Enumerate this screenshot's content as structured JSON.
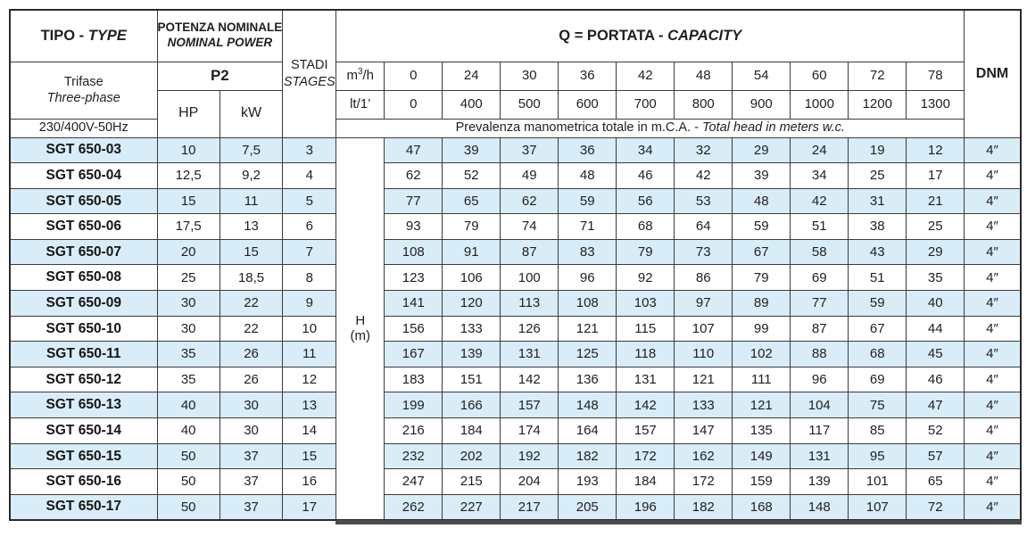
{
  "header": {
    "tipo_label": "TIPO -",
    "tipo_type_label": "TYPE",
    "potenza_line1": "POTENZA NOMINALE",
    "potenza_line2": "NOMINAL POWER",
    "p2_label": "P2",
    "hp_label": "HP",
    "kw_label": "kW",
    "stadi_label": "STADI",
    "stages_label": "STAGES",
    "q_label": "Q = PORTATA -",
    "q_capacity_label": "CAPACITY",
    "dnm_label": "DNM",
    "trifase_label": "Trifase",
    "threephase_label": "Three-phase",
    "voltage_label": "230/400V-50Hz",
    "flow_unit_m3h": "m³/h",
    "flow_unit_lt": "lt/1’",
    "prevalenza_label": "Prevalenza manometrica totale in m.C.A. -",
    "prevalenza_en_label": "Total head in meters w.c.",
    "h_label": "H",
    "h_unit": "(m)",
    "flow_m3h": [
      "0",
      "24",
      "30",
      "36",
      "42",
      "48",
      "54",
      "60",
      "72",
      "78"
    ],
    "flow_lt": [
      "0",
      "400",
      "500",
      "600",
      "700",
      "800",
      "900",
      "1000",
      "1200",
      "1300"
    ]
  },
  "rows": [
    {
      "type": "SGT 650-03",
      "hp": "10",
      "kw": "7,5",
      "stages": "3",
      "head": [
        "47",
        "39",
        "37",
        "36",
        "34",
        "32",
        "29",
        "24",
        "19",
        "12"
      ],
      "dnm": "4″"
    },
    {
      "type": "SGT 650-04",
      "hp": "12,5",
      "kw": "9,2",
      "stages": "4",
      "head": [
        "62",
        "52",
        "49",
        "48",
        "46",
        "42",
        "39",
        "34",
        "25",
        "17"
      ],
      "dnm": "4″"
    },
    {
      "type": "SGT 650-05",
      "hp": "15",
      "kw": "11",
      "stages": "5",
      "head": [
        "77",
        "65",
        "62",
        "59",
        "56",
        "53",
        "48",
        "42",
        "31",
        "21"
      ],
      "dnm": "4″"
    },
    {
      "type": "SGT 650-06",
      "hp": "17,5",
      "kw": "13",
      "stages": "6",
      "head": [
        "93",
        "79",
        "74",
        "71",
        "68",
        "64",
        "59",
        "51",
        "38",
        "25"
      ],
      "dnm": "4″"
    },
    {
      "type": "SGT 650-07",
      "hp": "20",
      "kw": "15",
      "stages": "7",
      "head": [
        "108",
        "91",
        "87",
        "83",
        "79",
        "73",
        "67",
        "58",
        "43",
        "29"
      ],
      "dnm": "4″"
    },
    {
      "type": "SGT 650-08",
      "hp": "25",
      "kw": "18,5",
      "stages": "8",
      "head": [
        "123",
        "106",
        "100",
        "96",
        "92",
        "86",
        "79",
        "69",
        "51",
        "35"
      ],
      "dnm": "4″"
    },
    {
      "type": "SGT 650-09",
      "hp": "30",
      "kw": "22",
      "stages": "9",
      "head": [
        "141",
        "120",
        "113",
        "108",
        "103",
        "97",
        "89",
        "77",
        "59",
        "40"
      ],
      "dnm": "4″"
    },
    {
      "type": "SGT 650-10",
      "hp": "30",
      "kw": "22",
      "stages": "10",
      "head": [
        "156",
        "133",
        "126",
        "121",
        "115",
        "107",
        "99",
        "87",
        "67",
        "44"
      ],
      "dnm": "4″"
    },
    {
      "type": "SGT 650-11",
      "hp": "35",
      "kw": "26",
      "stages": "11",
      "head": [
        "167",
        "139",
        "131",
        "125",
        "118",
        "110",
        "102",
        "88",
        "68",
        "45"
      ],
      "dnm": "4″"
    },
    {
      "type": "SGT 650-12",
      "hp": "35",
      "kw": "26",
      "stages": "12",
      "head": [
        "183",
        "151",
        "142",
        "136",
        "131",
        "121",
        "111",
        "96",
        "69",
        "46"
      ],
      "dnm": "4″"
    },
    {
      "type": "SGT 650-13",
      "hp": "40",
      "kw": "30",
      "stages": "13",
      "head": [
        "199",
        "166",
        "157",
        "148",
        "142",
        "133",
        "121",
        "104",
        "75",
        "47"
      ],
      "dnm": "4″"
    },
    {
      "type": "SGT 650-14",
      "hp": "40",
      "kw": "30",
      "stages": "14",
      "head": [
        "216",
        "184",
        "174",
        "164",
        "157",
        "147",
        "135",
        "117",
        "85",
        "52"
      ],
      "dnm": "4″"
    },
    {
      "type": "SGT 650-15",
      "hp": "50",
      "kw": "37",
      "stages": "15",
      "head": [
        "232",
        "202",
        "192",
        "182",
        "172",
        "162",
        "149",
        "131",
        "95",
        "57"
      ],
      "dnm": "4″"
    },
    {
      "type": "SGT 650-16",
      "hp": "50",
      "kw": "37",
      "stages": "16",
      "head": [
        "247",
        "215",
        "204",
        "193",
        "184",
        "172",
        "159",
        "139",
        "101",
        "65"
      ],
      "dnm": "4″"
    },
    {
      "type": "SGT 650-17",
      "hp": "50",
      "kw": "37",
      "stages": "17",
      "head": [
        "262",
        "227",
        "217",
        "205",
        "196",
        "182",
        "168",
        "148",
        "107",
        "72"
      ],
      "dnm": "4″"
    }
  ],
  "colors": {
    "row_alt": "#d9edf8",
    "border": "#3b3b3b",
    "text": "#1f1f1f",
    "accent_bar": "#4b4b4b"
  }
}
